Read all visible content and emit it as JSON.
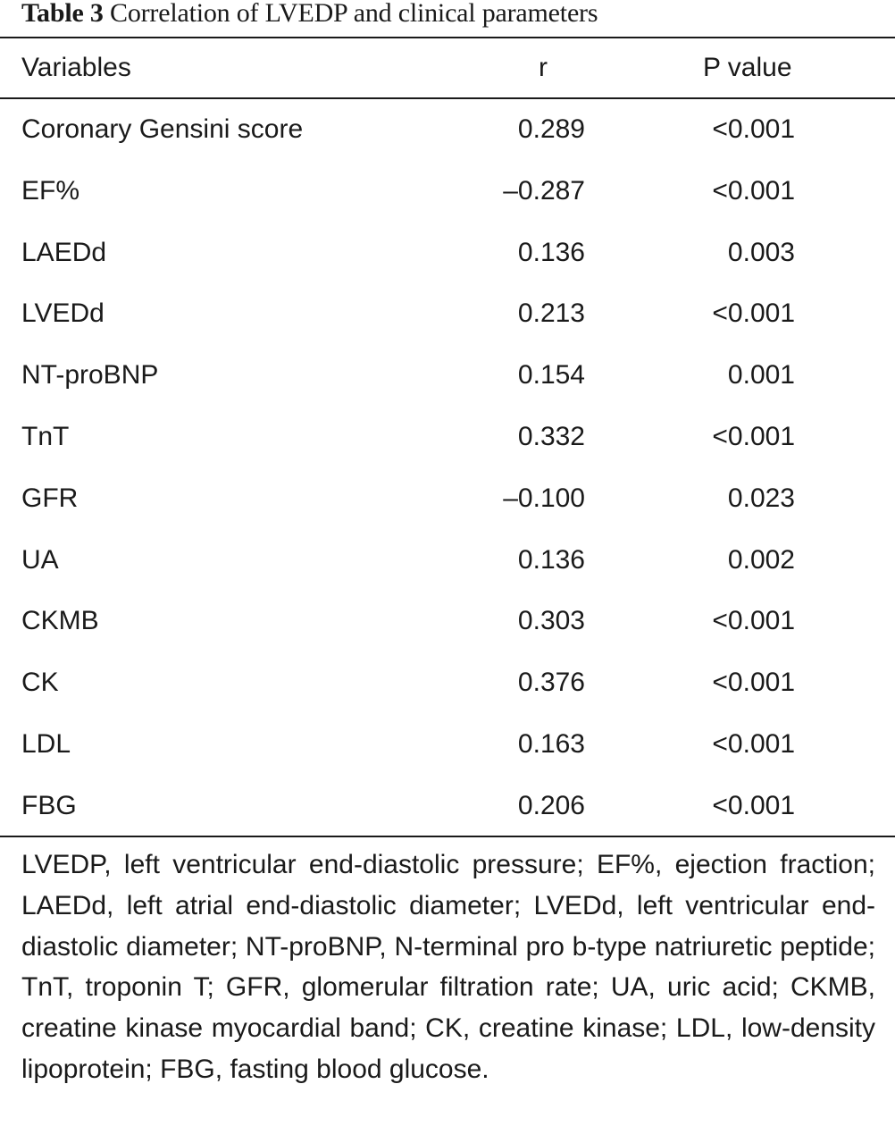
{
  "caption": {
    "label": "Table 3",
    "title": "Correlation of LVEDP and clinical parameters"
  },
  "columns": {
    "variable": "Variables",
    "r": "r",
    "p": "P value"
  },
  "rows": [
    {
      "variable": "Coronary Gensini score",
      "r": "0.289",
      "p": "<0.001"
    },
    {
      "variable": "EF%",
      "r": "–0.287",
      "p": "<0.001"
    },
    {
      "variable": "LAEDd",
      "r": "0.136",
      "p": "0.003"
    },
    {
      "variable": "LVEDd",
      "r": "0.213",
      "p": "<0.001"
    },
    {
      "variable": "NT-proBNP",
      "r": "0.154",
      "p": "0.001"
    },
    {
      "variable": "TnT",
      "r": "0.332",
      "p": "<0.001"
    },
    {
      "variable": "GFR",
      "r": "–0.100",
      "p": "0.023"
    },
    {
      "variable": "UA",
      "r": "0.136",
      "p": "0.002"
    },
    {
      "variable": "CKMB",
      "r": "0.303",
      "p": "<0.001"
    },
    {
      "variable": "CK",
      "r": "0.376",
      "p": "<0.001"
    },
    {
      "variable": "LDL",
      "r": "0.163",
      "p": "<0.001"
    },
    {
      "variable": "FBG",
      "r": "0.206",
      "p": "<0.001"
    }
  ],
  "footnote": "LVEDP, left ventricular end-diastolic pressure; EF%, ejection fraction; LAEDd, left atrial end-diastolic diameter; LVEDd, left ventricular end-diastolic diameter; NT-proBNP, N-terminal pro b-type natriuretic peptide; TnT, troponin T; GFR, glomerular filtration rate; UA, uric acid; CKMB, creatine kinase myocardial band; CK, creatine kinase; LDL, low-density lipoprotein; FBG, fasting blood glucose."
}
